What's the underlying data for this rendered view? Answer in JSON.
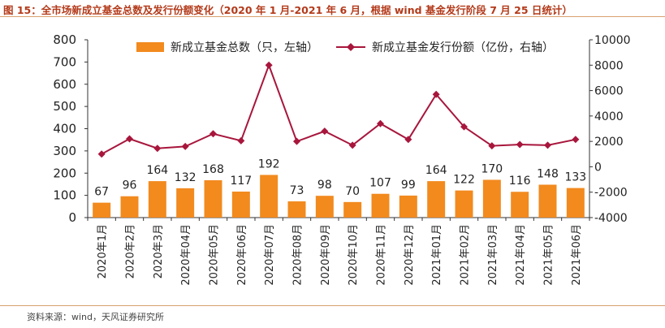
{
  "title": "图 15：全市场新成立基金总数及发行份额变化（2020 年 1 月-2021 年 6 月，根据 wind 基金发行阶段 7 月 25 日统计）",
  "source": "资料来源：wind，天风证券研究所",
  "colors": {
    "bar": "#f28a1e",
    "line": "#a8163c",
    "title": "#b33a1a",
    "rule": "#d8a070"
  },
  "chart_data": {
    "type": "bar+line",
    "categories": [
      "2020年1月",
      "2020年2月",
      "2020年3月",
      "2020年04月",
      "2020年05月",
      "2020年06月",
      "2020年07月",
      "2020年08月",
      "2020年09月",
      "2020年10月",
      "2020年11月",
      "2020年12月",
      "2021年01月",
      "2021年02月",
      "2021年03月",
      "2021年04月",
      "2021年05月",
      "2021年06月"
    ],
    "series": [
      {
        "name": "新成立基金总数（只，左轴）",
        "type": "bar",
        "axis": "left",
        "values": [
          67,
          96,
          164,
          132,
          168,
          117,
          192,
          73,
          98,
          70,
          107,
          99,
          164,
          122,
          170,
          116,
          148,
          133
        ]
      },
      {
        "name": "新成立基金发行份额（亿份，右轴）",
        "type": "line",
        "axis": "right",
        "values": [
          1000,
          2200,
          1450,
          1600,
          2600,
          2050,
          8000,
          2000,
          2800,
          1700,
          3400,
          2150,
          5700,
          3150,
          1650,
          1750,
          1700,
          2150
        ]
      }
    ],
    "y_left": {
      "lim": [
        0,
        800
      ],
      "ticks": [
        0,
        100,
        200,
        300,
        400,
        500,
        600,
        700,
        800
      ]
    },
    "y_right": {
      "lim": [
        -4000,
        10000
      ],
      "ticks": [
        -4000,
        -2000,
        0,
        2000,
        4000,
        6000,
        8000,
        10000
      ]
    },
    "bar_labels": true,
    "legend_position": "top",
    "grid": false
  }
}
